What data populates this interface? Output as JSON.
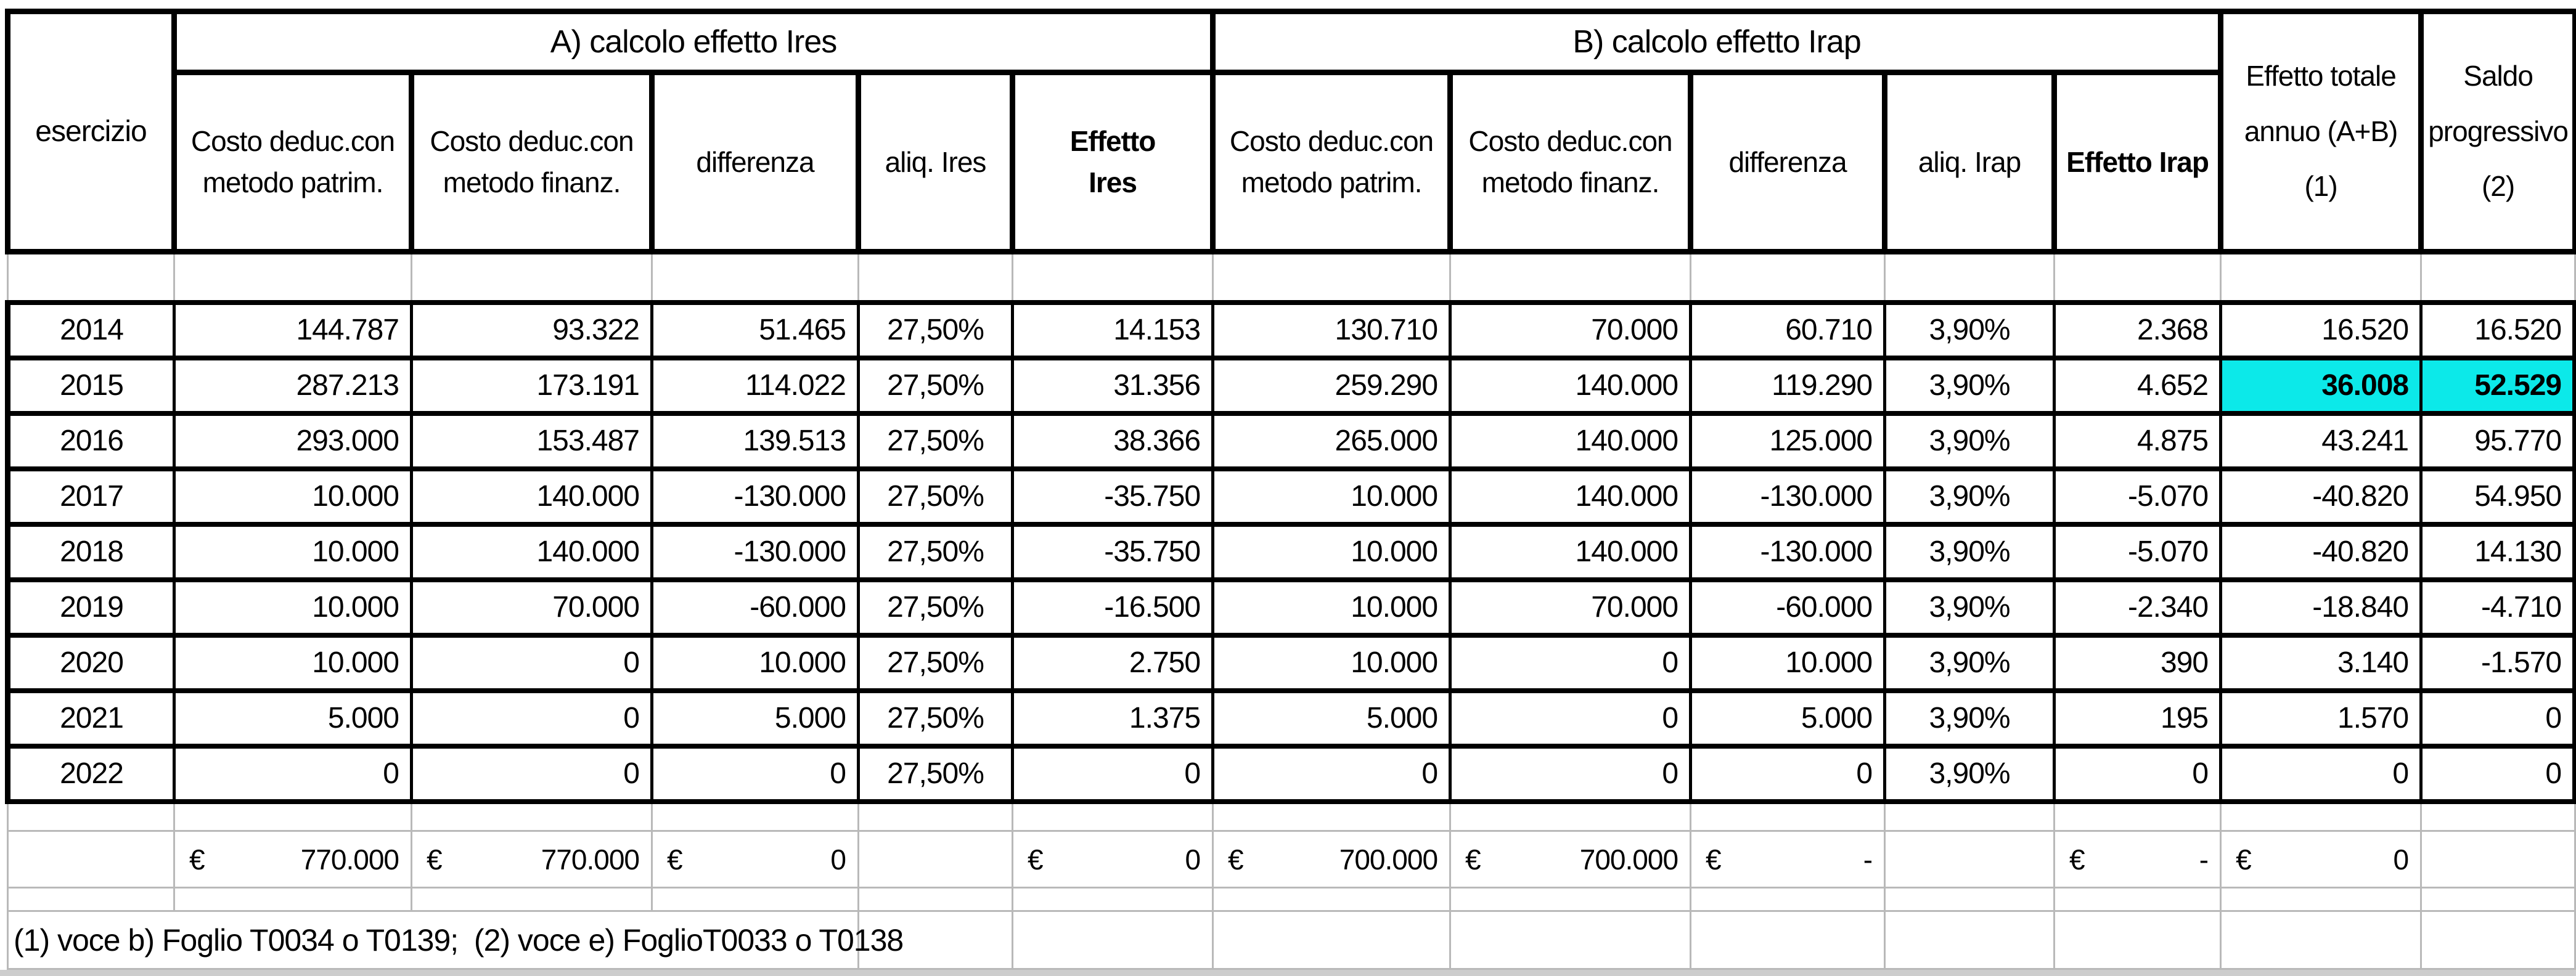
{
  "table": {
    "corner_header": "esercizio",
    "group_a": "A) calcolo effetto Ires",
    "group_b": "B) calcolo effetto Irap",
    "col_total": "Effetto totale\nannuo (A+B)\n(1)",
    "col_saldo": "Saldo\nprogressivo\n(2)",
    "sub_headers": [
      "Costo deduc.con\nmetodo patrim.",
      "Costo deduc.con\nmetodo finanz.",
      "differenza",
      "aliq. Ires",
      "Effetto\nIres",
      "Costo deduc.con\nmetodo patrim.",
      "Costo deduc.con\nmetodo finanz.",
      "differenza",
      "aliq. Irap",
      "Effetto Irap"
    ],
    "highlight_color": "#0ce9e9",
    "rows": [
      {
        "year": "2014",
        "cells": [
          "144.787",
          "93.322",
          "51.465",
          "27,50%",
          "14.153",
          "130.710",
          "70.000",
          "60.710",
          "3,90%",
          "2.368",
          "16.520",
          "16.520"
        ]
      },
      {
        "year": "2015",
        "cells": [
          "287.213",
          "173.191",
          "114.022",
          "27,50%",
          "31.356",
          "259.290",
          "140.000",
          "119.290",
          "3,90%",
          "4.652",
          "36.008",
          "52.529"
        ],
        "highlight": [
          10,
          11
        ]
      },
      {
        "year": "2016",
        "cells": [
          "293.000",
          "153.487",
          "139.513",
          "27,50%",
          "38.366",
          "265.000",
          "140.000",
          "125.000",
          "3,90%",
          "4.875",
          "43.241",
          "95.770"
        ]
      },
      {
        "year": "2017",
        "cells": [
          "10.000",
          "140.000",
          "-130.000",
          "27,50%",
          "-35.750",
          "10.000",
          "140.000",
          "-130.000",
          "3,90%",
          "-5.070",
          "-40.820",
          "54.950"
        ]
      },
      {
        "year": "2018",
        "cells": [
          "10.000",
          "140.000",
          "-130.000",
          "27,50%",
          "-35.750",
          "10.000",
          "140.000",
          "-130.000",
          "3,90%",
          "-5.070",
          "-40.820",
          "14.130"
        ]
      },
      {
        "year": "2019",
        "cells": [
          "10.000",
          "70.000",
          "-60.000",
          "27,50%",
          "-16.500",
          "10.000",
          "70.000",
          "-60.000",
          "3,90%",
          "-2.340",
          "-18.840",
          "-4.710"
        ]
      },
      {
        "year": "2020",
        "cells": [
          "10.000",
          "0",
          "10.000",
          "27,50%",
          "2.750",
          "10.000",
          "0",
          "10.000",
          "3,90%",
          "390",
          "3.140",
          "-1.570"
        ]
      },
      {
        "year": "2021",
        "cells": [
          "5.000",
          "0",
          "5.000",
          "27,50%",
          "1.375",
          "5.000",
          "0",
          "5.000",
          "3,90%",
          "195",
          "1.570",
          "0"
        ]
      },
      {
        "year": "2022",
        "cells": [
          "0",
          "0",
          "0",
          "27,50%",
          "0",
          "0",
          "0",
          "0",
          "3,90%",
          "0",
          "0",
          "0"
        ]
      }
    ],
    "totals": [
      {
        "sym": "€",
        "val": "770.000"
      },
      {
        "sym": "€",
        "val": "770.000"
      },
      {
        "sym": "€",
        "val": "0"
      },
      null,
      {
        "sym": "€",
        "val": "0"
      },
      {
        "sym": "€",
        "val": "700.000"
      },
      {
        "sym": "€",
        "val": "700.000"
      },
      {
        "sym": "€",
        "val": "-"
      },
      null,
      {
        "sym": "€",
        "val": "-"
      },
      {
        "sym": "€",
        "val": "0"
      },
      null
    ],
    "footnote": "(1) voce b) Foglio T0034 o T0139;  (2) voce e) FoglioT0033 o T0138"
  }
}
